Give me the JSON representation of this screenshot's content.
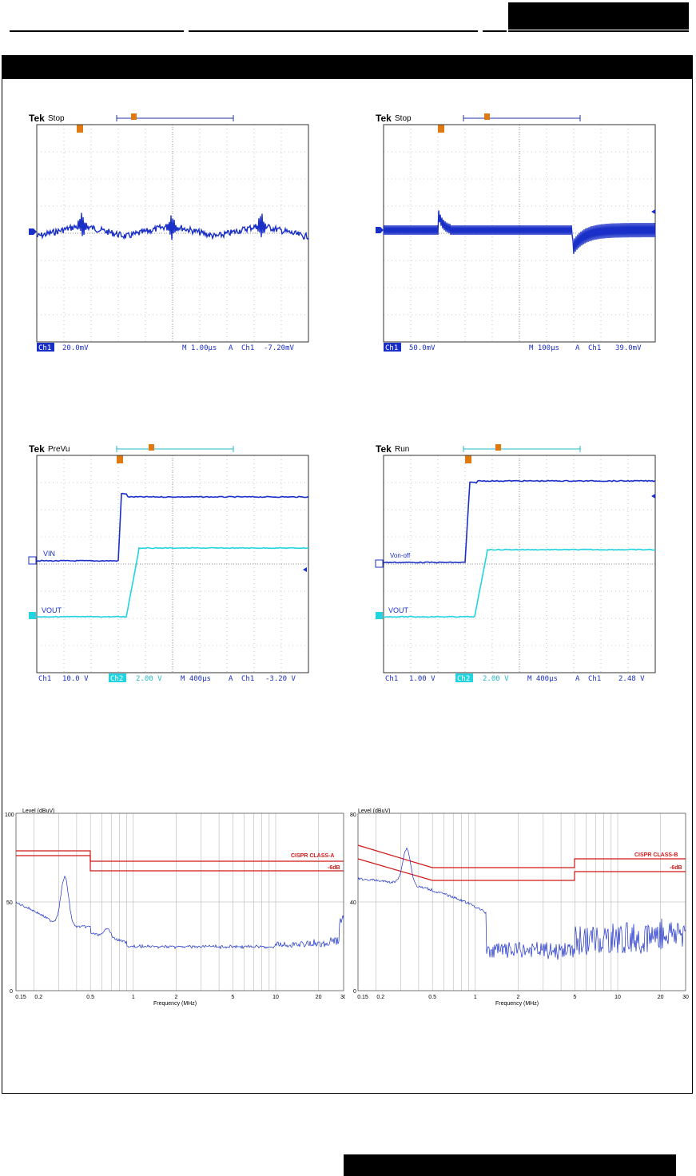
{
  "scope_top_left": {
    "brand": "Tek",
    "state": "Stop",
    "status_bar": {
      "ch1_tag": "Ch1",
      "ch1_scale": "20.0mV",
      "timebase": "M 1.00µs",
      "trigger_mode": "A",
      "trigger_channel": "Ch1",
      "trigger_level": "-7.20mV"
    }
  },
  "scope_top_right": {
    "brand": "Tek",
    "state": "Stop",
    "status_bar": {
      "ch1_tag": "Ch1",
      "ch1_scale": "50.0mV",
      "timebase": "M 100µs",
      "trigger_mode": "A",
      "trigger_channel": "Ch1",
      "trigger_level": "39.0mV"
    }
  },
  "scope_mid_left": {
    "brand": "Tek",
    "state": "PreVu",
    "ch1_label": "VIN",
    "ch2_label": "VOUT",
    "status_bar": {
      "ch1_tag": "Ch1",
      "ch1_scale": "10.0 V",
      "ch2_tag": "Ch2",
      "ch2_scale": "2.00 V",
      "timebase": "M 400µs",
      "trigger_mode": "A",
      "trigger_channel": "Ch1",
      "trigger_level": "-3.20 V"
    }
  },
  "scope_mid_right": {
    "brand": "Tek",
    "state": "Run",
    "ch1_label": "Von-off",
    "ch2_label": "VOUT",
    "status_bar": {
      "ch1_tag": "Ch1",
      "ch1_scale": "1.00 V",
      "ch2_tag": "Ch2",
      "ch2_scale": "2.00 V",
      "timebase": "M 400µs",
      "trigger_mode": "A",
      "trigger_channel": "Ch1",
      "trigger_level": "2.48 V"
    }
  },
  "emi_left": {
    "ylabel": "Level (dBuV)",
    "xlabel": "Frequency (MHz)",
    "y_ticks": [
      "100",
      "50",
      "0"
    ],
    "x_ticks": [
      "0.15",
      "0.2",
      "0.5",
      "1",
      "2",
      "5",
      "10",
      "20",
      "30"
    ],
    "limit_label": "CISPR CLASS-A",
    "margin_label": "-6dB"
  },
  "emi_right": {
    "ylabel": "Level (dBuV)",
    "xlabel": "Frequency (MHz)",
    "y_ticks": [
      "80",
      "40",
      "0"
    ],
    "x_ticks": [
      "0.15",
      "0.2",
      "0.5",
      "1",
      "2",
      "5",
      "10",
      "20",
      "30"
    ],
    "limit_label": "CISPR CLASS-B",
    "margin_label": "-6dB"
  },
  "colors": {
    "ch1_trace": "#1a2fc8",
    "ch2_trace": "#22d3e0",
    "limit_line": "#d01818",
    "emi_trace": "#1a2fc8",
    "trigger_marker": "#e07a10"
  }
}
